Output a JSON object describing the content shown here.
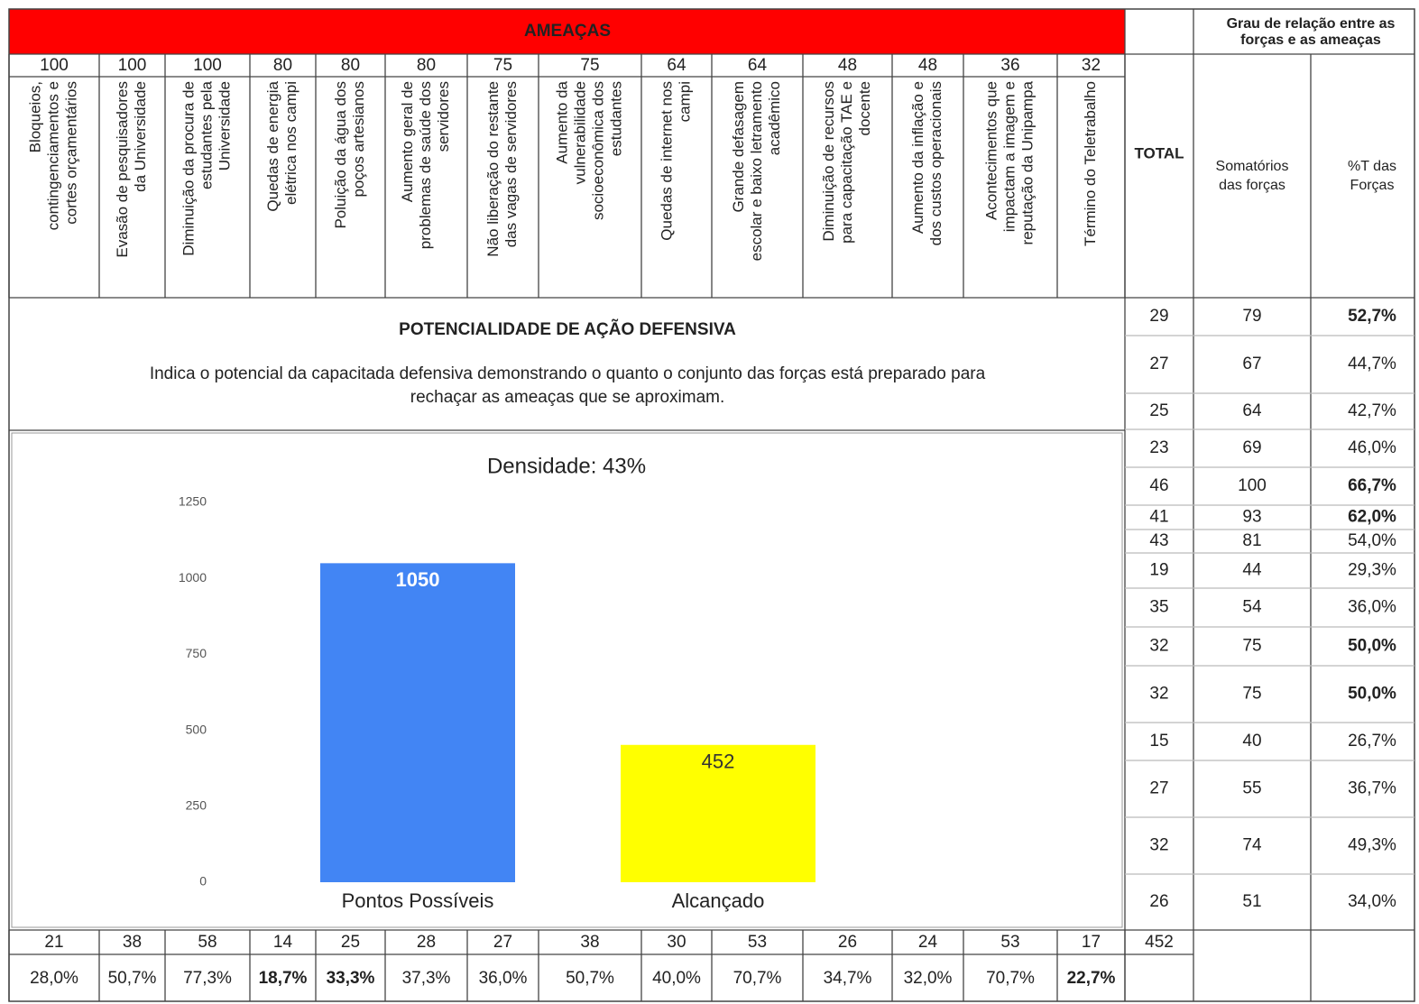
{
  "threats": {
    "title": "AMEAÇAS",
    "columns": [
      {
        "score": "100",
        "label": [
          "Bloqueios,",
          "contingenciamentos e",
          "cortes orçamentários"
        ]
      },
      {
        "score": "100",
        "label": [
          "Evasão de pesquisadores",
          "da Universidade"
        ]
      },
      {
        "score": "100",
        "label": [
          "Diminuição da procura de",
          "estudantes pela",
          "Universidade"
        ]
      },
      {
        "score": "80",
        "label": [
          "Quedas de energia",
          "elétrica nos campi"
        ]
      },
      {
        "score": "80",
        "label": [
          "Poluição da água dos",
          "poços artesianos"
        ]
      },
      {
        "score": "80",
        "label": [
          "Aumento geral de",
          "problemas de saúde dos",
          "servidores"
        ]
      },
      {
        "score": "75",
        "label": [
          "Não liberação do restante",
          "das vagas de servidores"
        ]
      },
      {
        "score": "75",
        "label": [
          "Aumento da",
          "vulnerabilidade",
          "socioeconômica dos",
          "estudantes"
        ]
      },
      {
        "score": "64",
        "label": [
          "Quedas de internet nos",
          "campi"
        ]
      },
      {
        "score": "64",
        "label": [
          "Grande defasagem",
          "escolar e baixo letramento",
          "acadêmico"
        ]
      },
      {
        "score": "48",
        "label": [
          "Diminuição de recursos",
          "para capacitação TAE e",
          "docente"
        ]
      },
      {
        "score": "48",
        "label": [
          "Aumento da inflação e",
          "dos custos operacionais"
        ]
      },
      {
        "score": "36",
        "label": [
          "Acontecimentos que",
          "impactam a imagem e",
          "reputação da Unipampa"
        ]
      },
      {
        "score": "32",
        "label": [
          "Término do Teletrabalho"
        ]
      }
    ]
  },
  "relation": {
    "title": [
      "Grau de relação entre as",
      "forças e as ameaças"
    ],
    "total_header": "TOTAL",
    "sum_header": [
      "Somatórios",
      "das forças"
    ],
    "pct_header": [
      "%T das",
      "Forças"
    ],
    "rows": [
      {
        "total": "29",
        "sum": "79",
        "pct": "52,7%",
        "bold": true
      },
      {
        "total": "27",
        "sum": "67",
        "pct": "44,7%",
        "bold": false
      },
      {
        "total": "25",
        "sum": "64",
        "pct": "42,7%",
        "bold": false
      },
      {
        "total": "23",
        "sum": "69",
        "pct": "46,0%",
        "bold": false
      },
      {
        "total": "46",
        "sum": "100",
        "pct": "66,7%",
        "bold": true
      },
      {
        "total": "41",
        "sum": "93",
        "pct": "62,0%",
        "bold": true
      },
      {
        "total": "43",
        "sum": "81",
        "pct": "54,0%",
        "bold": false
      },
      {
        "total": "19",
        "sum": "44",
        "pct": "29,3%",
        "bold": false
      },
      {
        "total": "35",
        "sum": "54",
        "pct": "36,0%",
        "bold": false
      },
      {
        "total": "32",
        "sum": "75",
        "pct": "50,0%",
        "bold": true
      },
      {
        "total": "32",
        "sum": "75",
        "pct": "50,0%",
        "bold": true
      },
      {
        "total": "15",
        "sum": "40",
        "pct": "26,7%",
        "bold": false
      },
      {
        "total": "27",
        "sum": "55",
        "pct": "36,7%",
        "bold": false
      },
      {
        "total": "32",
        "sum": "74",
        "pct": "49,3%",
        "bold": false
      },
      {
        "total": "26",
        "sum": "51",
        "pct": "34,0%",
        "bold": false
      }
    ]
  },
  "defense": {
    "title": "POTENCIALIDADE DE AÇÃO DEFENSIVA",
    "description": [
      "Indica o potencial da capacitada defensiva demonstrando o quanto o conjunto das forças está preparado para",
      "rechaçar as ameaças que se aproximam."
    ]
  },
  "chart_data": {
    "type": "bar",
    "title": "Densidade: 43%",
    "categories": [
      "Pontos Possíveis",
      "Alcançado"
    ],
    "values": [
      1050,
      452
    ],
    "colors": [
      "#4285f4",
      "#ffff00"
    ],
    "ylim": [
      0,
      1250
    ],
    "yticks": [
      0,
      250,
      500,
      750,
      1000,
      1250
    ],
    "grid": false
  },
  "footer": {
    "total": "452",
    "sums": [
      "21",
      "38",
      "58",
      "14",
      "25",
      "28",
      "27",
      "38",
      "30",
      "53",
      "26",
      "24",
      "53",
      "17"
    ],
    "pcts": [
      {
        "text": "28,0%",
        "bold": false
      },
      {
        "text": "50,7%",
        "bold": false
      },
      {
        "text": "77,3%",
        "bold": false
      },
      {
        "text": "18,7%",
        "bold": true
      },
      {
        "text": "33,3%",
        "bold": true
      },
      {
        "text": "37,3%",
        "bold": false
      },
      {
        "text": "36,0%",
        "bold": false
      },
      {
        "text": "50,7%",
        "bold": false
      },
      {
        "text": "40,0%",
        "bold": false
      },
      {
        "text": "70,7%",
        "bold": false
      },
      {
        "text": "34,7%",
        "bold": false
      },
      {
        "text": "32,0%",
        "bold": false
      },
      {
        "text": "70,7%",
        "bold": false
      },
      {
        "text": "22,7%",
        "bold": true
      }
    ]
  }
}
